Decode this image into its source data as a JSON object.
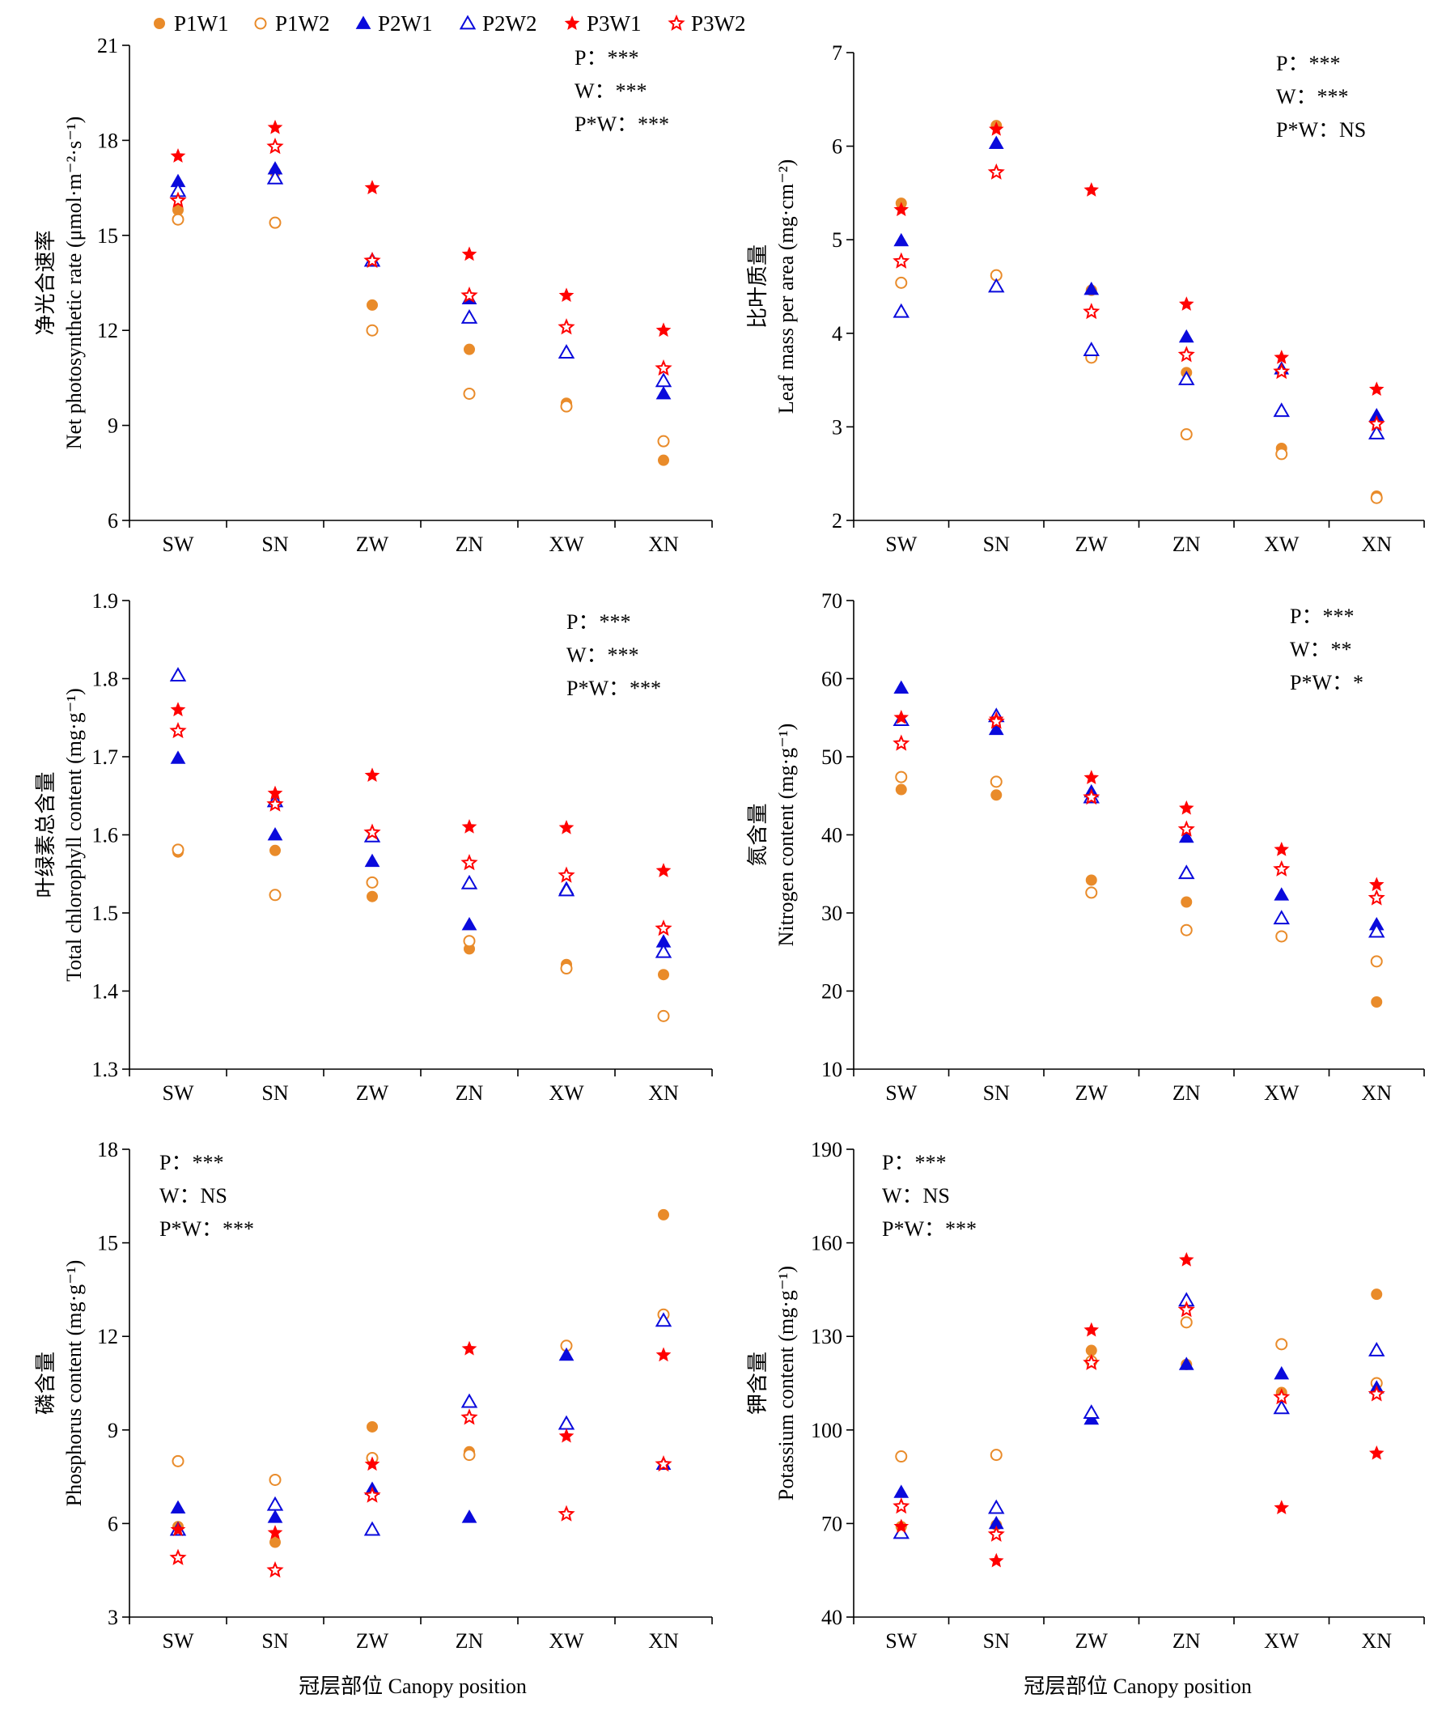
{
  "legend": [
    {
      "name": "P1W1",
      "color": "#E98B2A",
      "marker": "circle-filled"
    },
    {
      "name": "P1W2",
      "color": "#E98B2A",
      "marker": "circle-open"
    },
    {
      "name": "P2W1",
      "color": "#0A0ADC",
      "marker": "triangle-filled"
    },
    {
      "name": "P2W2",
      "color": "#0A0ADC",
      "marker": "triangle-open"
    },
    {
      "name": "P3W1",
      "color": "#FF0000",
      "marker": "star-filled"
    },
    {
      "name": "P3W2",
      "color": "#FF0000",
      "marker": "star-open"
    }
  ],
  "xlabel": "冠层部位 Canopy position",
  "chart_data": [
    {
      "type": "scatter",
      "ylabel_cn": "净光合速率",
      "ylabel_en": "Net photosynthetic rate (μmol·m⁻²·s⁻¹)",
      "categories": [
        "SW",
        "SN",
        "ZW",
        "ZN",
        "XW",
        "XN"
      ],
      "ylim": [
        6,
        21
      ],
      "yticks": [
        6,
        9,
        12,
        15,
        18,
        21
      ],
      "stats": [
        "P：***",
        "W：***",
        "P*W：***"
      ],
      "series": [
        {
          "name": "P1W1",
          "values": [
            15.8,
            17.0,
            12.8,
            11.4,
            9.7,
            7.9
          ]
        },
        {
          "name": "P1W2",
          "values": [
            15.5,
            15.4,
            12.0,
            10.0,
            9.6,
            8.5
          ]
        },
        {
          "name": "P2W1",
          "values": [
            16.7,
            17.1,
            14.2,
            13.0,
            11.3,
            10.0
          ]
        },
        {
          "name": "P2W2",
          "values": [
            16.4,
            16.8,
            14.2,
            12.4,
            11.3,
            10.4
          ]
        },
        {
          "name": "P3W1",
          "values": [
            17.5,
            18.4,
            16.5,
            14.4,
            13.1,
            12.0
          ]
        },
        {
          "name": "P3W2",
          "values": [
            16.1,
            17.8,
            14.2,
            13.1,
            12.1,
            10.8
          ]
        }
      ]
    },
    {
      "type": "scatter",
      "ylabel_cn": "比叶质量",
      "ylabel_en": "Leaf mass per area (mg·cm⁻²)",
      "categories": [
        "SW",
        "SN",
        "ZW",
        "ZN",
        "XW",
        "XN"
      ],
      "ylim": [
        2,
        7
      ],
      "yticks": [
        2,
        3,
        4,
        5,
        6,
        7
      ],
      "stats": [
        "P：***",
        "W：***",
        "P*W：NS"
      ],
      "series": [
        {
          "name": "P1W1",
          "values": [
            5.39,
            6.22,
            4.46,
            3.58,
            2.77,
            2.26
          ]
        },
        {
          "name": "P1W2",
          "values": [
            4.54,
            4.62,
            3.74,
            2.92,
            2.71,
            2.24
          ]
        },
        {
          "name": "P2W1",
          "values": [
            4.99,
            6.03,
            4.47,
            3.96,
            3.62,
            3.12
          ]
        },
        {
          "name": "P2W2",
          "values": [
            4.23,
            4.5,
            3.82,
            3.51,
            3.17,
            2.93
          ]
        },
        {
          "name": "P3W1",
          "values": [
            5.32,
            6.18,
            5.53,
            4.31,
            3.74,
            3.4
          ]
        },
        {
          "name": "P3W2",
          "values": [
            4.77,
            5.72,
            4.23,
            3.77,
            3.59,
            3.03
          ]
        }
      ]
    },
    {
      "type": "scatter",
      "ylabel_cn": "叶绿素总含量",
      "ylabel_en": "Total chlorophyll content (mg·g⁻¹)",
      "categories": [
        "SW",
        "SN",
        "ZW",
        "ZN",
        "XW",
        "XN"
      ],
      "ylim": [
        1.3,
        1.9
      ],
      "yticks": [
        1.3,
        1.4,
        1.5,
        1.6,
        1.7,
        1.8,
        1.9
      ],
      "stats": [
        "P：***",
        "W：***",
        "P*W：***"
      ],
      "series": [
        {
          "name": "P1W1",
          "values": [
            1.578,
            1.58,
            1.521,
            1.454,
            1.434,
            1.421
          ]
        },
        {
          "name": "P1W2",
          "values": [
            1.581,
            1.523,
            1.539,
            1.464,
            1.429,
            1.368
          ]
        },
        {
          "name": "P2W1",
          "values": [
            1.698,
            1.6,
            1.566,
            1.485,
            1.531,
            1.463
          ]
        },
        {
          "name": "P2W2",
          "values": [
            1.804,
            1.643,
            1.598,
            1.538,
            1.529,
            1.45
          ]
        },
        {
          "name": "P3W1",
          "values": [
            1.76,
            1.653,
            1.676,
            1.61,
            1.609,
            1.554
          ]
        },
        {
          "name": "P3W2",
          "values": [
            1.733,
            1.639,
            1.603,
            1.564,
            1.548,
            1.48
          ]
        }
      ]
    },
    {
      "type": "scatter",
      "ylabel_cn": "氮含量",
      "ylabel_en": "Nitrogen content (mg·g⁻¹)",
      "categories": [
        "SW",
        "SN",
        "ZW",
        "ZN",
        "XW",
        "XN"
      ],
      "ylim": [
        10,
        70
      ],
      "yticks": [
        10,
        20,
        30,
        40,
        50,
        60,
        70
      ],
      "stats": [
        "P：***",
        "W：**",
        "P*W：*"
      ],
      "series": [
        {
          "name": "P1W1",
          "values": [
            45.8,
            45.1,
            34.2,
            31.4,
            27.0,
            18.6
          ]
        },
        {
          "name": "P1W2",
          "values": [
            47.4,
            46.8,
            32.6,
            27.8,
            27.0,
            23.8
          ]
        },
        {
          "name": "P2W1",
          "values": [
            58.8,
            53.5,
            45.5,
            39.7,
            32.3,
            28.5
          ]
        },
        {
          "name": "P2W2",
          "values": [
            54.7,
            55.2,
            44.8,
            35.1,
            29.3,
            27.6
          ]
        },
        {
          "name": "P3W1",
          "values": [
            55.0,
            54.8,
            47.3,
            43.4,
            38.1,
            33.6
          ]
        },
        {
          "name": "P3W2",
          "values": [
            51.7,
            54.5,
            44.8,
            40.7,
            35.6,
            31.9
          ]
        }
      ]
    },
    {
      "type": "scatter",
      "ylabel_cn": "磷含量",
      "ylabel_en": "Phosphorus content (mg·g⁻¹)",
      "categories": [
        "SW",
        "SN",
        "ZW",
        "ZN",
        "XW",
        "XN"
      ],
      "ylim": [
        3,
        18
      ],
      "yticks": [
        3,
        6,
        9,
        12,
        15,
        18
      ],
      "stats": [
        "P：***",
        "W：NS",
        "P*W：***"
      ],
      "series": [
        {
          "name": "P1W1",
          "values": [
            5.9,
            5.4,
            9.1,
            8.3,
            11.7,
            15.9
          ]
        },
        {
          "name": "P1W2",
          "values": [
            8.0,
            7.4,
            8.1,
            8.2,
            11.7,
            12.7
          ]
        },
        {
          "name": "P2W1",
          "values": [
            6.5,
            6.2,
            7.1,
            6.2,
            11.4,
            7.9
          ]
        },
        {
          "name": "P2W2",
          "values": [
            5.8,
            6.6,
            5.8,
            9.9,
            9.2,
            12.5
          ]
        },
        {
          "name": "P3W1",
          "values": [
            5.8,
            5.7,
            7.9,
            11.6,
            8.8,
            11.4
          ]
        },
        {
          "name": "P3W2",
          "values": [
            4.9,
            4.5,
            6.9,
            9.4,
            6.3,
            7.9
          ]
        }
      ]
    },
    {
      "type": "scatter",
      "ylabel_cn": "钾含量",
      "ylabel_en": "Potassium content (mg·g⁻¹)",
      "categories": [
        "SW",
        "SN",
        "ZW",
        "ZN",
        "XW",
        "XN"
      ],
      "ylim": [
        40,
        190
      ],
      "yticks": [
        40,
        70,
        100,
        130,
        160,
        190
      ],
      "stats": [
        "P：***",
        "W：NS",
        "P*W：***"
      ],
      "series": [
        {
          "name": "P1W1",
          "values": [
            69.0,
            69.5,
            125.5,
            121.0,
            112.0,
            143.5
          ]
        },
        {
          "name": "P1W2",
          "values": [
            91.5,
            92.0,
            122.0,
            134.5,
            127.5,
            115.0
          ]
        },
        {
          "name": "P2W1",
          "values": [
            80.0,
            70.0,
            103.5,
            121.0,
            118.0,
            113.5
          ]
        },
        {
          "name": "P2W2",
          "values": [
            67.0,
            75.0,
            105.5,
            141.5,
            107.0,
            125.5
          ]
        },
        {
          "name": "P3W1",
          "values": [
            69.0,
            58.0,
            132.0,
            154.5,
            75.0,
            92.5
          ]
        },
        {
          "name": "P3W2",
          "values": [
            75.5,
            66.5,
            121.5,
            138.5,
            110.5,
            111.5
          ]
        }
      ]
    }
  ]
}
